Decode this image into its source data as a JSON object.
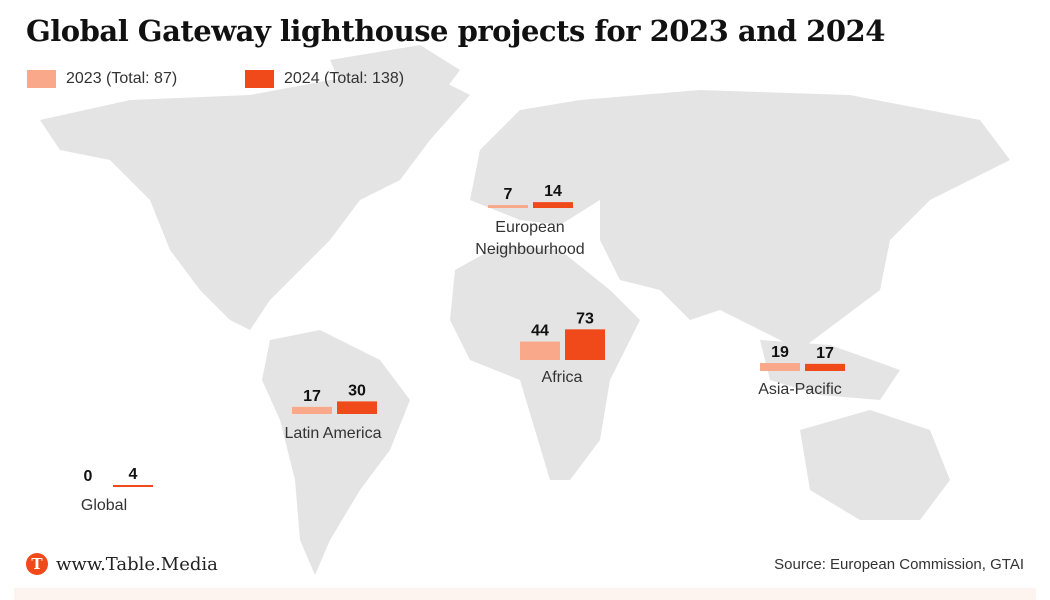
{
  "chart_data": {
    "type": "bar",
    "title": "Global Gateway lighthouse projects for 2023 and 2024",
    "categories": [
      "European Neighbourhood",
      "Africa",
      "Latin America",
      "Asia-Pacific",
      "Global"
    ],
    "series": [
      {
        "name": "2023 (Total: 87)",
        "values": [
          7,
          44,
          17,
          19,
          0
        ],
        "color": "#f9a98a"
      },
      {
        "name": "2024 (Total: 138)",
        "values": [
          14,
          73,
          30,
          17,
          4
        ],
        "color": "#f04a1a"
      }
    ],
    "legend": "top-left",
    "background": "world map",
    "map_color": "#e4e4e4"
  },
  "footer": {
    "brand": "www.Table.Media",
    "logo_letter": "T",
    "source": "Source: European Commission, GTAI"
  }
}
